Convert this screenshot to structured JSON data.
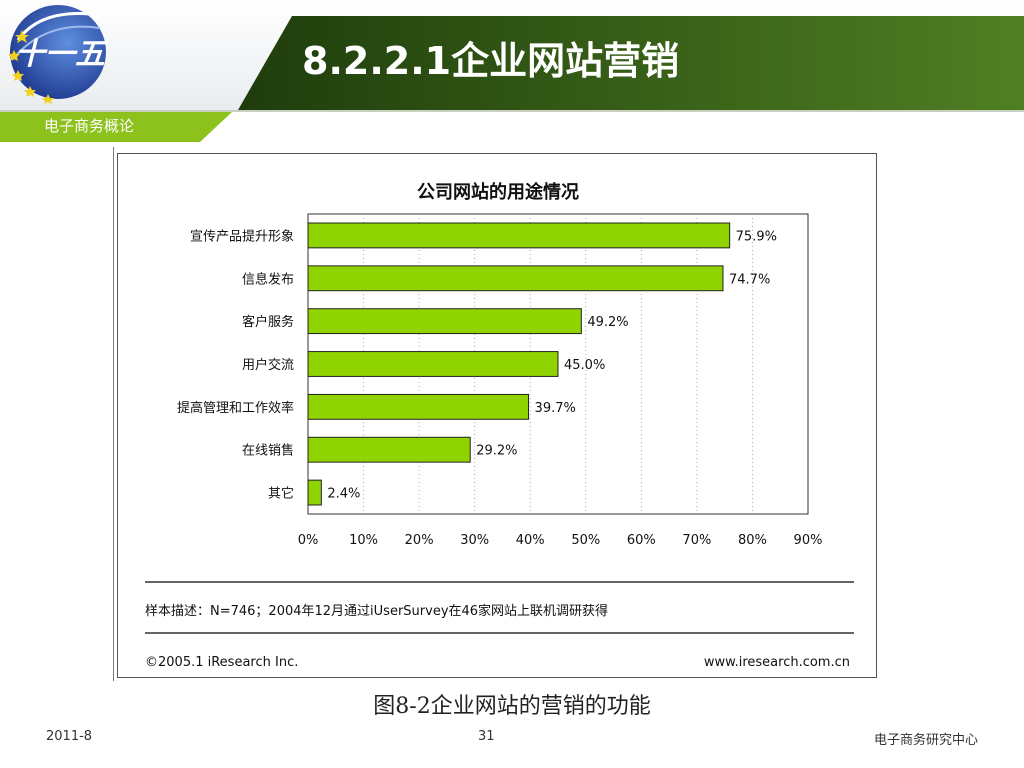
{
  "slide": {
    "title": "8.2.2.1企业网站营销",
    "course_label": "电子商务概论",
    "logo_text": "十一五",
    "caption": "图8-2企业网站的营销的功能",
    "footer": {
      "date": "2011-8",
      "page": "31",
      "org": "电子商务研究中心"
    }
  },
  "colors": {
    "header_green": "#3d6b1f",
    "accent_green": "#8cc21b",
    "bar_fill": "#8fd400",
    "logo_blue": "#1f3f9a"
  },
  "chart_data": {
    "type": "bar",
    "orientation": "horizontal",
    "title": "公司网站的用途情况",
    "categories": [
      "宣传产品提升形象",
      "信息发布",
      "客户服务",
      "用户交流",
      "提高管理和工作效率",
      "在线销售",
      "其它"
    ],
    "values": [
      75.9,
      74.7,
      49.2,
      45.0,
      39.7,
      29.2,
      2.4
    ],
    "value_labels": [
      "75.9%",
      "74.7%",
      "49.2%",
      "45.0%",
      "39.7%",
      "29.2%",
      "2.4%"
    ],
    "xlim": [
      0,
      90
    ],
    "xticks": [
      "0%",
      "10%",
      "20%",
      "30%",
      "40%",
      "50%",
      "60%",
      "70%",
      "80%",
      "90%"
    ],
    "grid": "vertical-dotted",
    "note": "样本描述：N=746；2004年12月通过iUserSurvey在46家网站上联机调研获得",
    "source_left": "©2005.1 iResearch Inc.",
    "source_right": "www.iresearch.com.cn"
  }
}
